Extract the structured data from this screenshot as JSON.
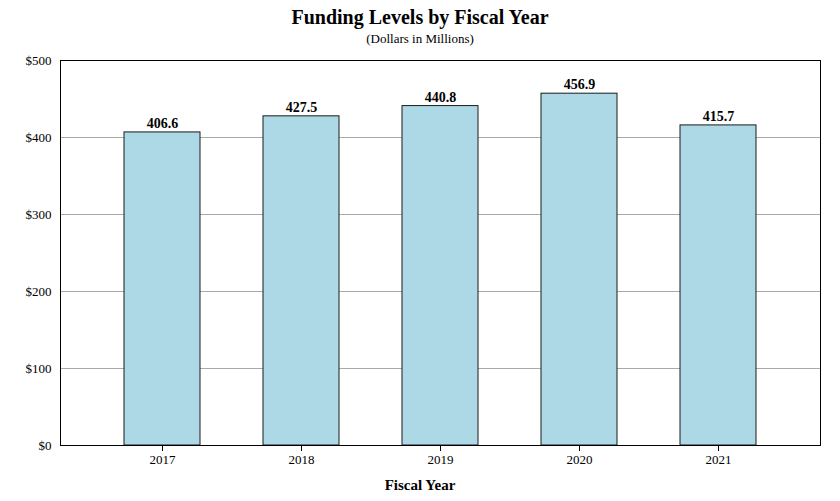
{
  "chart_data": {
    "type": "bar",
    "title": "Funding Levels by Fiscal Year",
    "subtitle": "(Dollars in Millions)",
    "xlabel": "Fiscal Year",
    "categories": [
      "2017",
      "2018",
      "2019",
      "2020",
      "2021"
    ],
    "values": [
      406.6,
      427.5,
      440.8,
      456.9,
      415.7
    ],
    "color": "#add8e6",
    "ylim": [
      0,
      500
    ],
    "yticks": [
      {
        "value": 0,
        "label": "$0"
      },
      {
        "value": 100,
        "label": "$100"
      },
      {
        "value": 200,
        "label": "$200"
      },
      {
        "value": 300,
        "label": "$300"
      },
      {
        "value": 400,
        "label": "$400"
      },
      {
        "value": 500,
        "label": "$500"
      }
    ],
    "grid": true,
    "data_labels": true
  }
}
